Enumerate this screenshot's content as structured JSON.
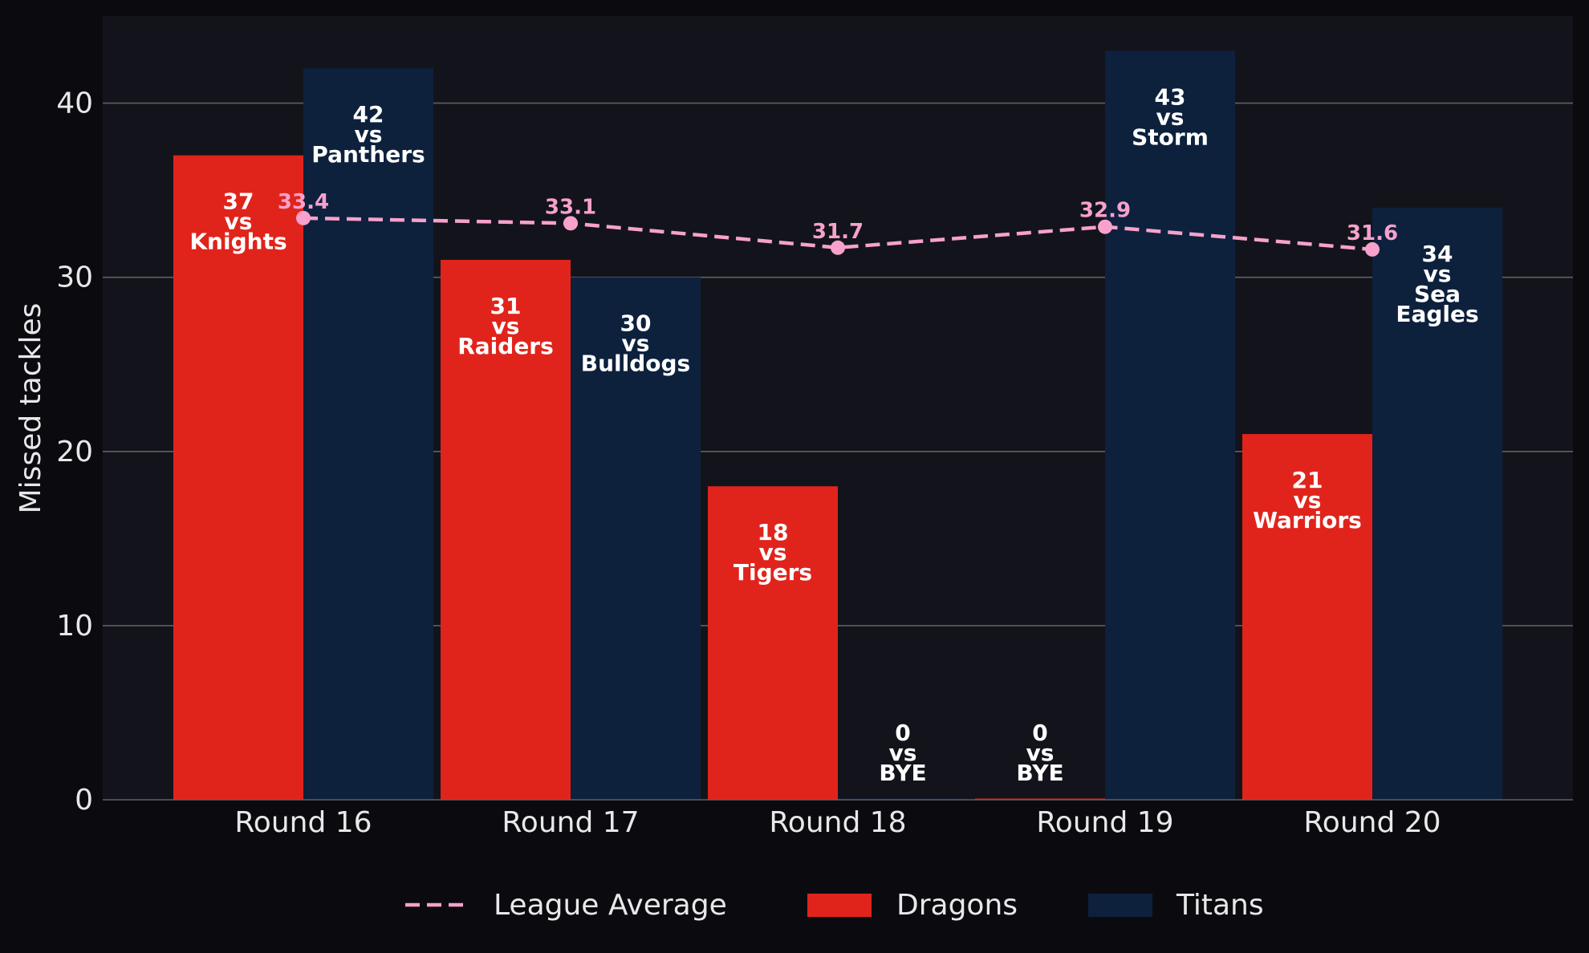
{
  "chart_data": {
    "type": "bar",
    "ylabel": "Missed tackles",
    "ylim": [
      0,
      45
    ],
    "yticks": [
      0,
      10,
      20,
      30,
      40
    ],
    "grid": "horizontal",
    "legend_position": "bottom",
    "categories": [
      "Round 16",
      "Round 17",
      "Round 18",
      "Round 19",
      "Round 20"
    ],
    "series": [
      {
        "name": "Dragons",
        "color": "#e0241c",
        "values": [
          37,
          31,
          18,
          0,
          21
        ],
        "labels": [
          "37\nvs\nKnights",
          "31\nvs\nRaiders",
          "18\nvs\nTigers",
          "0\nvs\nBYE",
          "21\nvs\nWarriors"
        ]
      },
      {
        "name": "Titans",
        "color": "#0d213d",
        "values": [
          42,
          30,
          0,
          43,
          34
        ],
        "labels": [
          "42\nvs\nPanthers",
          "30\nvs\nBulldogs",
          "0\nvs\nBYE",
          "43\nvs\nStorm",
          "34\nvs\nSea\nEagles"
        ]
      }
    ],
    "line": {
      "name": "League Average",
      "color": "#f7a1cc",
      "style": "dashed",
      "values": [
        33.4,
        33.1,
        31.7,
        32.9,
        31.6
      ],
      "labels": [
        "33.4",
        "33.1",
        "31.7",
        "32.9",
        "31.6"
      ]
    },
    "legend": [
      "League Average",
      "Dragons",
      "Titans"
    ]
  },
  "colors": {
    "page_background": "#0b0b0f",
    "plot_background": "#13141b",
    "grid": "#5f6066",
    "text": "#e8e8ea"
  }
}
